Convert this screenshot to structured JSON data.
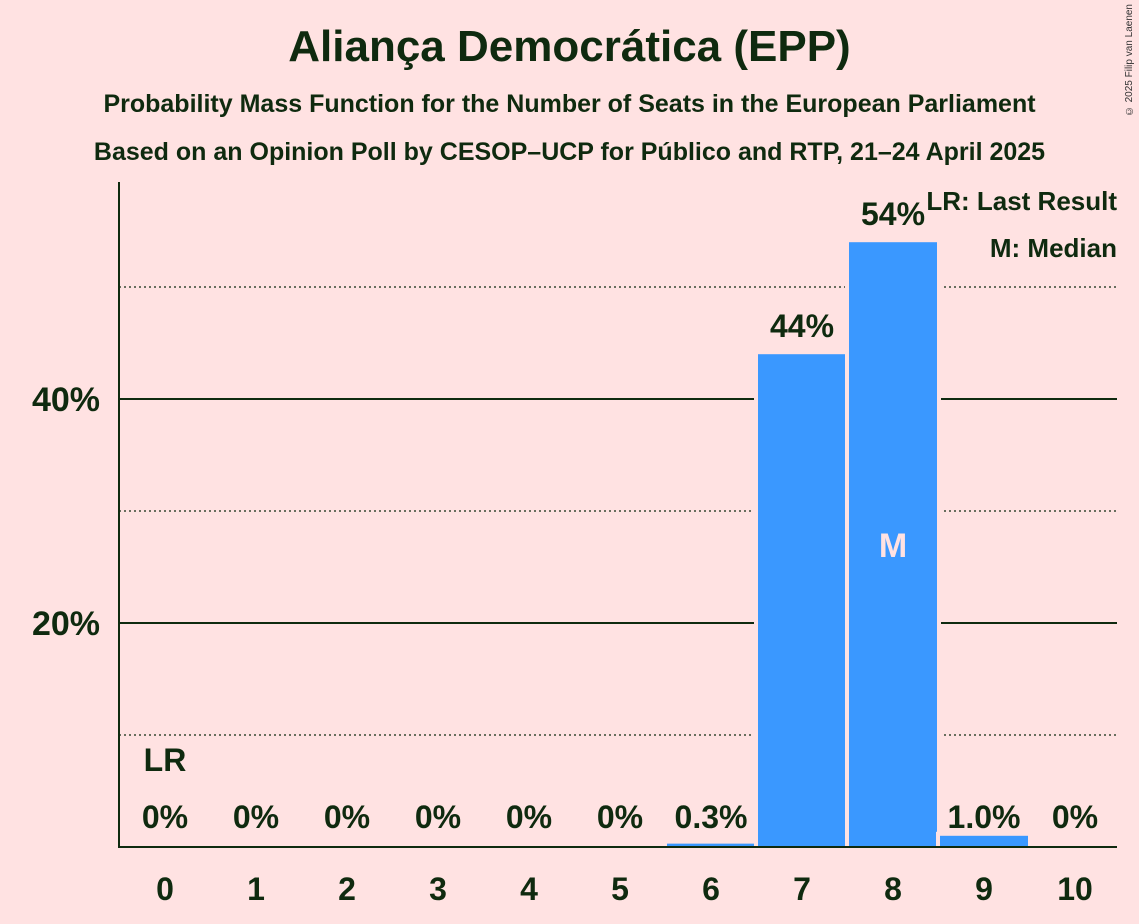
{
  "title": "Aliança Democrática (EPP)",
  "subtitle1": "Probability Mass Function for the Number of Seats in the European Parliament",
  "subtitle2": "Based on an Opinion Poll by CESOP–UCP for Público and RTP, 21–24 April 2025",
  "copyright": "© 2025 Filip van Laenen",
  "legend": {
    "last_result": "LR: Last Result",
    "median": "M: Median"
  },
  "colors": {
    "bar": "#3A98FF",
    "background": "#FFE2E2",
    "text": "#0F2A0F"
  },
  "chart_data": {
    "type": "bar",
    "categories": [
      "0",
      "1",
      "2",
      "3",
      "4",
      "5",
      "6",
      "7",
      "8",
      "9",
      "10"
    ],
    "values": [
      0,
      0,
      0,
      0,
      0,
      0,
      0.3,
      44,
      54,
      1.0,
      0
    ],
    "value_labels": [
      "0%",
      "0%",
      "0%",
      "0%",
      "0%",
      "0%",
      "0.3%",
      "44%",
      "54%",
      "1.0%",
      "0%"
    ],
    "y_ticks": [
      20,
      40
    ],
    "y_tick_labels": [
      "20%",
      "40%"
    ],
    "y_minor_ticks": [
      10,
      30,
      50
    ],
    "ylim": [
      0,
      58
    ],
    "last_result_category": "0",
    "last_result_marker": "LR",
    "median_category": "8",
    "median_marker": "M",
    "legend_position": "top-right"
  }
}
